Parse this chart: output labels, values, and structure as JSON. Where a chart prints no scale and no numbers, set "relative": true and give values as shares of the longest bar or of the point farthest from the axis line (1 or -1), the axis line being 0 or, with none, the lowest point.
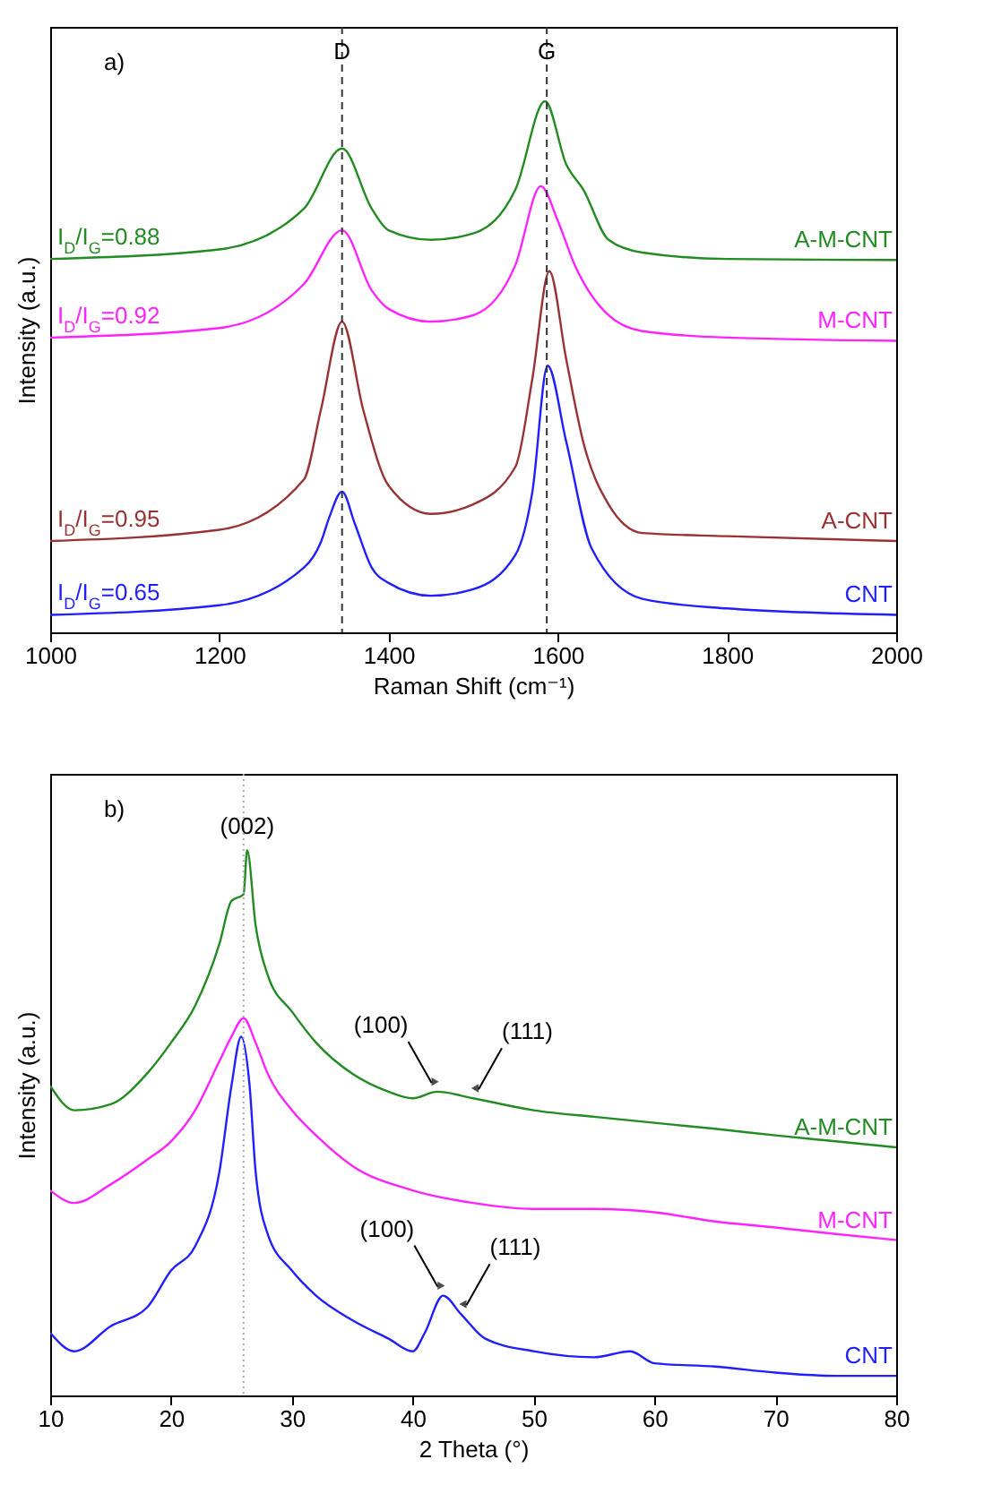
{
  "chart_data": [
    {
      "type": "line",
      "relative": true,
      "xlabel": "Raman Shift (cm⁻¹)",
      "ylabel": "Intensity (a.u.)",
      "xlim": [
        1000,
        2000
      ],
      "xticks": [
        1000,
        1200,
        1400,
        1600,
        1800,
        2000
      ],
      "grid": false,
      "legend": false,
      "line_style": "solid",
      "series": [
        {
          "name": "CNT",
          "color": "#1f1fff",
          "x": [
            1000,
            1200,
            1300,
            1320,
            1330,
            1345,
            1360,
            1380,
            1400,
            1450,
            1500,
            1550,
            1570,
            1588,
            1610,
            1640,
            1700,
            1800,
            2000
          ],
          "values": [
            0.033,
            0.051,
            0.122,
            0.17,
            0.217,
            0.265,
            0.205,
            0.122,
            0.093,
            0.069,
            0.081,
            0.146,
            0.265,
            0.502,
            0.359,
            0.158,
            0.063,
            0.045,
            0.033
          ]
        },
        {
          "name": "A-CNT",
          "color": "#993333",
          "x": [
            1000,
            1200,
            1300,
            1320,
            1345,
            1370,
            1400,
            1450,
            1500,
            1550,
            1570,
            1590,
            1610,
            1630,
            1660,
            1700,
            1800,
            2000
          ],
          "values": [
            0.172,
            0.193,
            0.288,
            0.419,
            0.585,
            0.419,
            0.276,
            0.223,
            0.241,
            0.312,
            0.478,
            0.68,
            0.514,
            0.359,
            0.241,
            0.187,
            0.181,
            0.172
          ]
        },
        {
          "name": "M-CNT",
          "color": "#ff22ff",
          "x": [
            1000,
            1200,
            1300,
            1345,
            1380,
            1400,
            1450,
            1500,
            1550,
            1580,
            1600,
            1620,
            1660,
            1700,
            1800,
            2000
          ],
          "values": [
            0.555,
            0.573,
            0.656,
            0.757,
            0.644,
            0.609,
            0.585,
            0.597,
            0.692,
            0.84,
            0.775,
            0.692,
            0.597,
            0.567,
            0.555,
            0.549
          ]
        },
        {
          "name": "A-M-CNT",
          "color": "#228b22",
          "x": [
            1000,
            1200,
            1300,
            1345,
            1380,
            1400,
            1450,
            1500,
            1550,
            1585,
            1610,
            1630,
            1660,
            1700,
            1800,
            2000
          ],
          "values": [
            0.703,
            0.721,
            0.798,
            0.911,
            0.798,
            0.757,
            0.739,
            0.751,
            0.834,
            1.0,
            0.881,
            0.834,
            0.739,
            0.715,
            0.703,
            0.701
          ]
        }
      ],
      "ref_lines": [
        {
          "axis": "x",
          "value": 1345,
          "label": "D",
          "color": "#333333",
          "line_style": "dashed"
        },
        {
          "axis": "x",
          "value": 1587,
          "label": "G",
          "color": "#333333",
          "line_style": "dashed"
        }
      ],
      "annotations": [
        "a)",
        {
          "text": "I$_{D}$/I$_{G}$=0.88",
          "x": 1000,
          "y": 0.703
        },
        {
          "text": "I$_{D}$/I$_{G}$=0.92",
          "x": 1000,
          "y": 0.555
        },
        {
          "text": "I$_{D}$/I$_{G}$=0.95",
          "x": 1000,
          "y": 0.172
        },
        {
          "text": "I$_{D}$/I$_{G}$=0.65",
          "x": 1000,
          "y": 0.033
        }
      ]
    },
    {
      "type": "line",
      "relative": true,
      "xlabel": "2 Theta (°)",
      "ylabel": "Intensity (a.u.)",
      "xlim": [
        10,
        80
      ],
      "xticks": [
        10,
        20,
        30,
        40,
        50,
        60,
        70,
        80
      ],
      "grid": false,
      "legend": false,
      "line_style": "solid",
      "series": [
        {
          "name": "CNT",
          "color": "#1f1fff",
          "x": [
            10,
            12,
            15,
            18,
            20,
            22,
            24,
            25,
            25.8,
            26.5,
            27,
            28,
            30,
            32,
            35,
            38,
            40,
            41,
            42.5,
            44,
            46,
            50,
            55,
            58,
            60,
            65,
            70,
            75,
            80
          ],
          "values": [
            0.115,
            0.081,
            0.127,
            0.161,
            0.229,
            0.274,
            0.41,
            0.568,
            0.658,
            0.568,
            0.41,
            0.296,
            0.229,
            0.183,
            0.138,
            0.104,
            0.081,
            0.115,
            0.183,
            0.149,
            0.104,
            0.081,
            0.07,
            0.081,
            0.059,
            0.053,
            0.042,
            0.036,
            0.036
          ]
        },
        {
          "name": "M-CNT",
          "color": "#ff22ff",
          "x": [
            10,
            12,
            15,
            18,
            20,
            22,
            24,
            25,
            26,
            27,
            28,
            30,
            32,
            35,
            40,
            45,
            50,
            55,
            60,
            65,
            70,
            75,
            80
          ],
          "values": [
            0.376,
            0.353,
            0.387,
            0.432,
            0.466,
            0.523,
            0.613,
            0.658,
            0.692,
            0.647,
            0.59,
            0.523,
            0.477,
            0.421,
            0.376,
            0.353,
            0.342,
            0.342,
            0.336,
            0.319,
            0.308,
            0.296,
            0.285
          ]
        },
        {
          "name": "A-M-CNT",
          "color": "#228b22",
          "x": [
            10,
            12,
            15,
            18,
            20,
            22,
            24,
            25,
            26,
            26.3,
            27,
            28,
            30,
            32,
            35,
            38,
            40,
            42,
            45,
            50,
            55,
            60,
            65,
            70,
            75,
            80
          ],
          "values": [
            0.568,
            0.523,
            0.534,
            0.59,
            0.647,
            0.715,
            0.828,
            0.907,
            0.919,
            1.0,
            0.862,
            0.771,
            0.704,
            0.647,
            0.59,
            0.557,
            0.545,
            0.557,
            0.545,
            0.523,
            0.511,
            0.5,
            0.489,
            0.477,
            0.466,
            0.455
          ]
        }
      ],
      "ref_lines": [
        {
          "axis": "x",
          "value": 26,
          "color": "#aaaaaa",
          "line_style": "dotted"
        }
      ],
      "annotations": [
        "b)",
        {
          "text": "(002)",
          "x": 26.3,
          "y": 1.0
        },
        {
          "text": "(100)",
          "x": 42,
          "y": 0.557
        },
        {
          "text": "(111)",
          "x": 45,
          "y": 0.545
        },
        {
          "text": "(100)",
          "x": 42.5,
          "y": 0.183
        },
        {
          "text": "(111)",
          "x": 44,
          "y": 0.149
        }
      ]
    }
  ]
}
